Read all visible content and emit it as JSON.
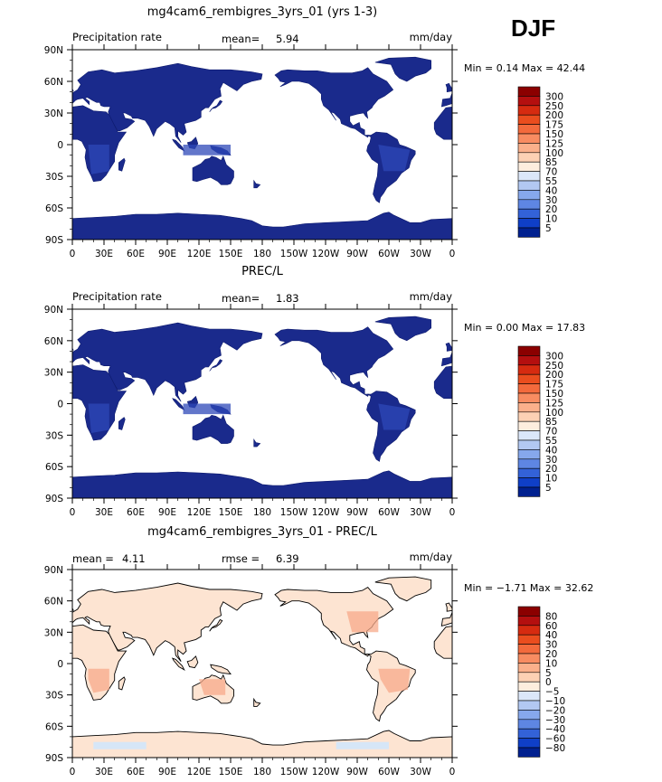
{
  "season": "DJF",
  "panels": [
    {
      "title": "mg4cam6_rembigres_3yrs_01 (yrs 1-3)",
      "left_label": "Precipitation rate",
      "stat1_label": "mean=",
      "stat1_value": "5.94",
      "stat2_label": "",
      "stat2_value": "",
      "units": "mm/day",
      "minmax": "Min =   0.14 Max =  42.44",
      "colorbar": {
        "labels": [
          "300",
          "250",
          "200",
          "175",
          "150",
          "125",
          "100",
          "85",
          "70",
          "55",
          "40",
          "30",
          "20",
          "10",
          "5"
        ],
        "colors": [
          "#8b0000",
          "#b40f0f",
          "#d62b10",
          "#ea4d1e",
          "#f36a3c",
          "#f88c61",
          "#fbb08b",
          "#fdd1b4",
          "#fdeede",
          "#dbe7f9",
          "#b2c8f2",
          "#86a8ec",
          "#5e86e3",
          "#3362d8",
          "#0f3fc7",
          "#00208f"
        ]
      }
    },
    {
      "title": "PREC/L",
      "left_label": "Precipitation rate",
      "stat1_label": "mean=",
      "stat1_value": "1.83",
      "stat2_label": "",
      "stat2_value": "",
      "units": "mm/day",
      "minmax": "Min =   0.00 Max =  17.83",
      "colorbar": {
        "labels": [
          "300",
          "250",
          "200",
          "175",
          "150",
          "125",
          "100",
          "85",
          "70",
          "55",
          "40",
          "30",
          "20",
          "10",
          "5"
        ],
        "colors": [
          "#8b0000",
          "#b40f0f",
          "#d62b10",
          "#ea4d1e",
          "#f36a3c",
          "#f88c61",
          "#fbb08b",
          "#fdd1b4",
          "#fdeede",
          "#dbe7f9",
          "#b2c8f2",
          "#86a8ec",
          "#5e86e3",
          "#3362d8",
          "#0f3fc7",
          "#00208f"
        ]
      }
    },
    {
      "title": "mg4cam6_rembigres_3yrs_01 - PREC/L",
      "left_label": "",
      "stat1_label": "mean =",
      "stat1_value": "4.11",
      "stat2_label": "rmse =",
      "stat2_value": "6.39",
      "units": "mm/day",
      "minmax": "Min =  −1.71 Max =  32.62",
      "colorbar": {
        "labels": [
          "80",
          "60",
          "40",
          "30",
          "20",
          "10",
          "5",
          "0",
          "−5",
          "−10",
          "−20",
          "−30",
          "−40",
          "−60",
          "−80"
        ],
        "colors": [
          "#8b0000",
          "#b40f0f",
          "#d62b10",
          "#ea4d1e",
          "#f36a3c",
          "#f88c61",
          "#fbb08b",
          "#fdd1b4",
          "#fdeede",
          "#dbe7f9",
          "#b2c8f2",
          "#86a8ec",
          "#5e86e3",
          "#3362d8",
          "#0f3fc7",
          "#00208f"
        ]
      }
    }
  ],
  "chart_data": [
    {
      "type": "heatmap",
      "title": "mg4cam6_rembigres_3yrs_01 (yrs 1-3)",
      "variable": "Precipitation rate",
      "units": "mm/day",
      "mean": 5.94,
      "min": 0.14,
      "max": 42.44,
      "x_ticks": [
        "0",
        "30E",
        "60E",
        "90E",
        "120E",
        "150E",
        "180",
        "150W",
        "120W",
        "90W",
        "60W",
        "30W",
        "0"
      ],
      "y_ticks": [
        "90N",
        "60N",
        "30N",
        "0",
        "30S",
        "60S",
        "90S"
      ],
      "xlim": [
        0,
        360
      ],
      "ylim": [
        -90,
        90
      ],
      "contour_levels": [
        5,
        10,
        20,
        30,
        40,
        55,
        70,
        85,
        100,
        125,
        150,
        175,
        200,
        250,
        300
      ],
      "fill": "land-only"
    },
    {
      "type": "heatmap",
      "title": "PREC/L",
      "variable": "Precipitation rate",
      "units": "mm/day",
      "mean": 1.83,
      "min": 0.0,
      "max": 17.83,
      "x_ticks": [
        "0",
        "30E",
        "60E",
        "90E",
        "120E",
        "150E",
        "180",
        "150W",
        "120W",
        "90W",
        "60W",
        "30W",
        "0"
      ],
      "y_ticks": [
        "90N",
        "60N",
        "30N",
        "0",
        "30S",
        "60S",
        "90S"
      ],
      "xlim": [
        0,
        360
      ],
      "ylim": [
        -90,
        90
      ],
      "contour_levels": [
        5,
        10,
        20,
        30,
        40,
        55,
        70,
        85,
        100,
        125,
        150,
        175,
        200,
        250,
        300
      ],
      "fill": "land-only"
    },
    {
      "type": "heatmap",
      "title": "mg4cam6_rembigres_3yrs_01 - PREC/L",
      "units": "mm/day",
      "mean": 4.11,
      "rmse": 6.39,
      "min": -1.71,
      "max": 32.62,
      "x_ticks": [
        "0",
        "30E",
        "60E",
        "90E",
        "120E",
        "150E",
        "180",
        "150W",
        "120W",
        "90W",
        "60W",
        "30W",
        "0"
      ],
      "y_ticks": [
        "90N",
        "60N",
        "30N",
        "0",
        "30S",
        "60S",
        "90S"
      ],
      "xlim": [
        0,
        360
      ],
      "ylim": [
        -90,
        90
      ],
      "contour_levels": [
        -80,
        -60,
        -40,
        -30,
        -20,
        -10,
        -5,
        0,
        5,
        10,
        20,
        30,
        40,
        60,
        80
      ],
      "fill": "land-only"
    }
  ]
}
